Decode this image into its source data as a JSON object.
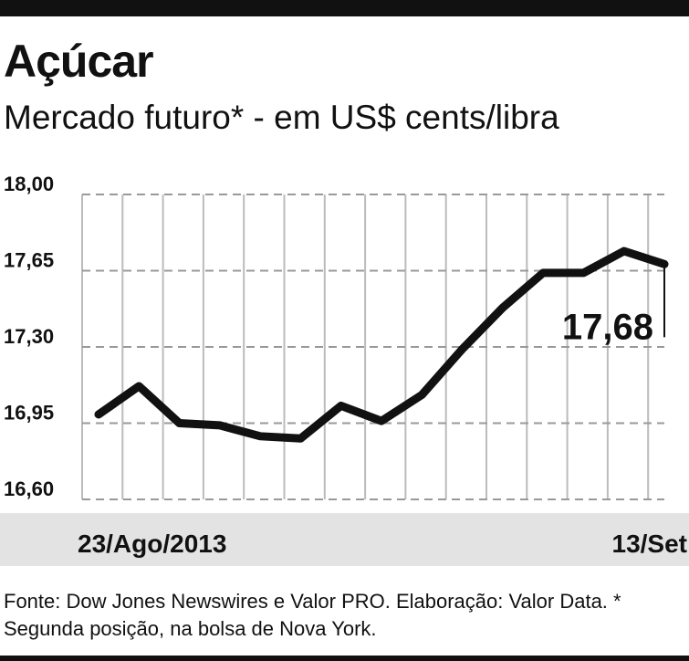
{
  "chart_data": {
    "type": "line",
    "title": "Açúcar",
    "subtitle": "Mercado futuro* - em US$ cents/libra",
    "categories": [
      "23/Ago/2013",
      null,
      null,
      null,
      null,
      null,
      null,
      null,
      null,
      null,
      null,
      null,
      null,
      null,
      "13/Set"
    ],
    "series": [
      {
        "color": "#111111",
        "values": [
          16.99,
          17.12,
          16.95,
          16.94,
          16.89,
          16.88,
          17.03,
          16.96,
          17.08,
          17.29,
          17.48,
          17.64,
          17.64,
          17.74,
          17.68
        ],
        "value_labels": [
          null,
          null,
          null,
          null,
          null,
          null,
          null,
          null,
          null,
          null,
          null,
          null,
          null,
          null,
          "17,68"
        ]
      }
    ],
    "ylim": [
      16.6,
      18
    ],
    "yticks": [
      {
        "value": 18,
        "label": "18,00"
      },
      {
        "value": 17.65,
        "label": "17,65"
      },
      {
        "value": 17.3,
        "label": "17,30"
      },
      {
        "value": 16.95,
        "label": "16,95"
      },
      {
        "value": 16.6,
        "label": "16,60"
      }
    ],
    "grid": true,
    "source": "Fonte: Dow Jones Newswires e Valor PRO. Elaboração: Valor Data. * Segunda posição, na bolsa de Nova York."
  }
}
